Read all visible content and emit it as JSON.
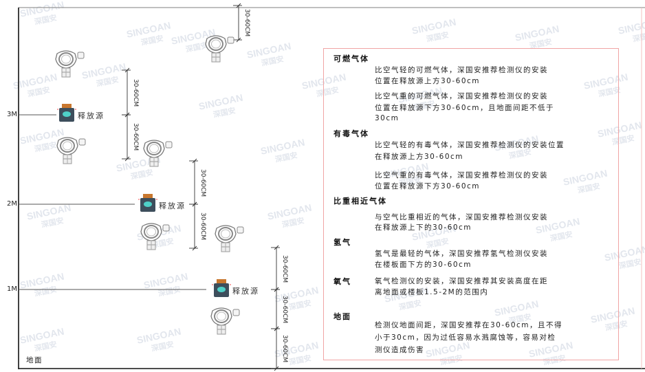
{
  "watermark": {
    "brand": "SINGOAN",
    "cn": "深国安"
  },
  "levels": [
    "3M",
    "2M",
    "1M"
  ],
  "ground_label": "地面",
  "source_label": "释放源",
  "dimension_label": "30-60CM",
  "panel": {
    "sections": [
      {
        "title": "可燃气体",
        "paragraphs": [
          [
            "比空气轻的可燃气体，深国安推荐检测仪的安装",
            "位置在释放源上方30-60cm"
          ],
          [
            "比空气重的可燃气体，深国安推荐检测仪的安装",
            "位置在释放源下方30-60cm，且地面间距不低于",
            "30cm"
          ]
        ]
      },
      {
        "title": "有毒气体",
        "paragraphs": [
          [
            "比空气轻的有毒气体，深国安推荐检测仪的安装位置",
            "在释放源上方30-60cm"
          ],
          [
            "比空气重的有毒气体，深国安推荐检测仪的安装",
            "位置在释放源下方30-60cm"
          ]
        ]
      },
      {
        "title": "比重相近气体",
        "paragraphs": [
          [
            "与空气比重相近的气体，深国安推荐检测仪安装",
            "在释放源上下的30-60cm"
          ]
        ]
      },
      {
        "title": "氢气",
        "paragraphs": [
          [
            "氢气是最轻的气体，深国安推荐氢气检测仪安装",
            "在楼板面下方的30-60cm"
          ]
        ]
      },
      {
        "title": "氧气",
        "paragraphs": [
          [
            "氧气检测仪的安装，深国安推荐其安装高度在距",
            "离地面或楼板1.5-2M的范围内"
          ]
        ]
      },
      {
        "title": "地面",
        "paragraphs": [
          [
            "检测仪地面间距，深国安推荐在30-60cm，且不得",
            "小于30cm，因为过低容易水溅腐蚀等，容易对检",
            "测仪造成伤害"
          ]
        ]
      }
    ]
  },
  "colors": {
    "panel_border": "#f0a4a4",
    "source_body": "#3d4e5c",
    "source_face": "#4fd0c8",
    "source_cap": "#c8772e"
  }
}
